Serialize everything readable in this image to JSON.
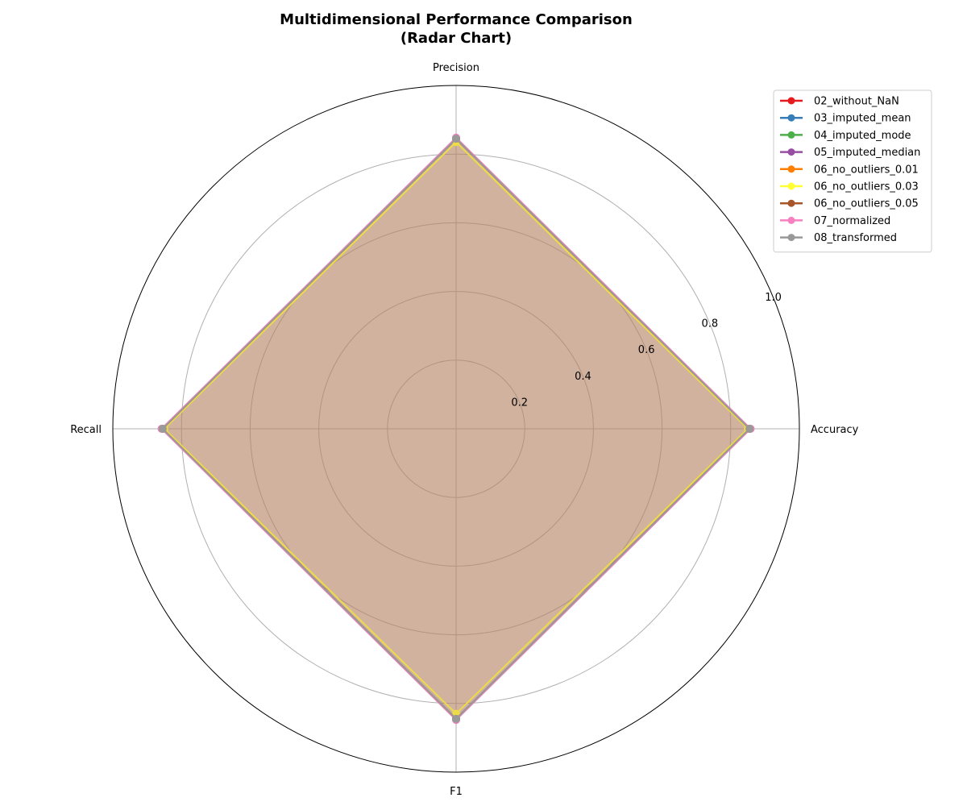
{
  "chart_data": {
    "type": "radar",
    "title": "Multidimensional Performance Comparison",
    "subtitle": "(Radar Chart)",
    "axes": [
      "Accuracy",
      "Precision",
      "Recall",
      "F1"
    ],
    "rlim": [
      0,
      1.0
    ],
    "rticks": [
      0.2,
      0.4,
      0.6,
      0.8,
      1.0
    ],
    "rtick_labels": [
      "0.2",
      "0.4",
      "0.6",
      "0.8",
      "1.0"
    ],
    "grid": true,
    "legend_position": "top-right",
    "series": [
      {
        "name": "02_without_NaN",
        "color": "#e41a1c",
        "values": [
          0.855,
          0.845,
          0.855,
          0.845
        ]
      },
      {
        "name": "03_imputed_mean",
        "color": "#377eb8",
        "values": [
          0.855,
          0.845,
          0.855,
          0.845
        ]
      },
      {
        "name": "04_imputed_mode",
        "color": "#4daf4a",
        "values": [
          0.855,
          0.845,
          0.855,
          0.845
        ]
      },
      {
        "name": "05_imputed_median",
        "color": "#984ea3",
        "values": [
          0.855,
          0.845,
          0.855,
          0.845
        ]
      },
      {
        "name": "06_no_outliers_0.01",
        "color": "#ff7f00",
        "values": [
          0.855,
          0.845,
          0.855,
          0.845
        ]
      },
      {
        "name": "06_no_outliers_0.03",
        "color": "#ffff33",
        "values": [
          0.85,
          0.835,
          0.85,
          0.83
        ]
      },
      {
        "name": "06_no_outliers_0.05",
        "color": "#a65628",
        "values": [
          0.855,
          0.845,
          0.855,
          0.845
        ]
      },
      {
        "name": "07_normalized",
        "color": "#f781bf",
        "values": [
          0.858,
          0.848,
          0.858,
          0.848
        ]
      },
      {
        "name": "08_transformed",
        "color": "#999999",
        "values": [
          0.855,
          0.845,
          0.855,
          0.845
        ]
      }
    ]
  }
}
